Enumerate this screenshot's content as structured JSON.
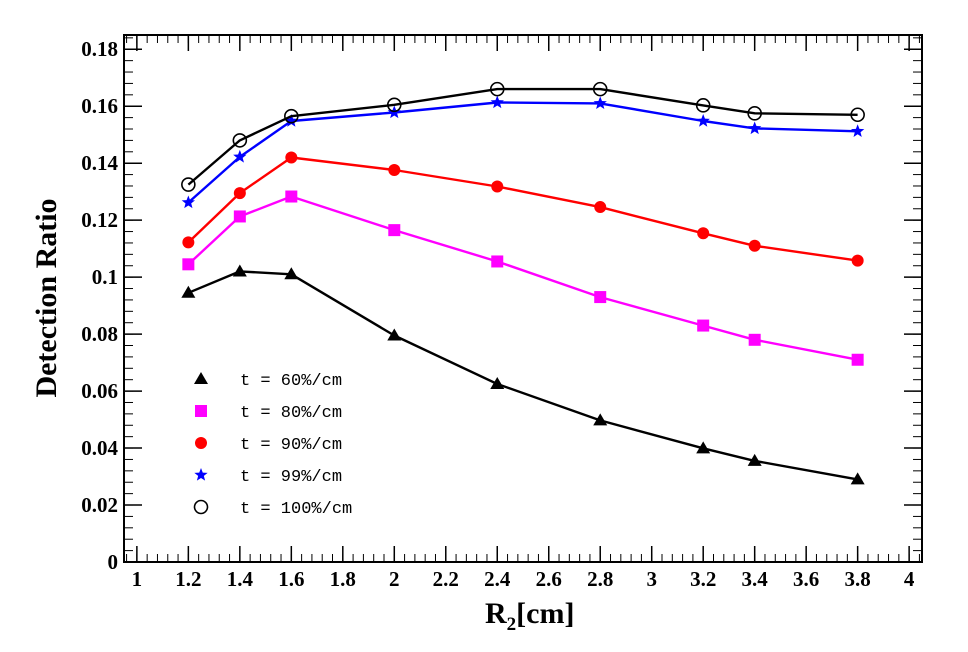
{
  "chart_data": {
    "type": "line",
    "title": "",
    "xlabel": "R",
    "xlabel_sub": "2",
    "xlabel_unit": "[cm]",
    "ylabel": "Detection Ratio",
    "xlim": [
      0.95,
      4.05
    ],
    "ylim": [
      0,
      0.185
    ],
    "xticks": [
      1,
      1.2,
      1.4,
      1.6,
      1.8,
      2,
      2.2,
      2.4,
      2.6,
      2.8,
      3,
      3.2,
      3.4,
      3.6,
      3.8,
      4
    ],
    "xtick_labels": [
      "1",
      "1.2",
      "1.4",
      "1.6",
      "1.8",
      "2",
      "2.2",
      "2.4",
      "2.6",
      "2.8",
      "3",
      "3.2",
      "3.4",
      "3.6",
      "3.8",
      "4"
    ],
    "yticks": [
      0,
      0.02,
      0.04,
      0.06,
      0.08,
      0.1,
      0.12,
      0.14,
      0.16,
      0.18
    ],
    "ytick_labels": [
      "0",
      "0.02",
      "0.04",
      "0.06",
      "0.08",
      "0.1",
      "0.12",
      "0.14",
      "0.16",
      "0.18"
    ],
    "grid": false,
    "legend_position": "bottom-left",
    "x": [
      1.2,
      1.4,
      1.6,
      2.0,
      2.4,
      2.8,
      3.2,
      3.4,
      3.8
    ],
    "series": [
      {
        "name": "t = 60%/cm",
        "marker": "triangle",
        "color": "#000000",
        "values": [
          0.0945,
          0.102,
          0.101,
          0.0795,
          0.0625,
          0.0497,
          0.0399,
          0.0355,
          0.029
        ]
      },
      {
        "name": "t = 80%/cm",
        "marker": "square",
        "color": "#ff00ff",
        "values": [
          0.1045,
          0.1213,
          0.1283,
          0.1165,
          0.1055,
          0.093,
          0.083,
          0.078,
          0.071
        ]
      },
      {
        "name": "t = 90%/cm",
        "marker": "circle",
        "color": "#ff0000",
        "values": [
          0.1122,
          0.1295,
          0.142,
          0.1376,
          0.1318,
          0.1246,
          0.1154,
          0.111,
          0.1058
        ]
      },
      {
        "name": "t = 99%/cm",
        "marker": "star",
        "color": "#0000ff",
        "values": [
          0.1262,
          0.1422,
          0.1548,
          0.1578,
          0.1613,
          0.161,
          0.1548,
          0.1522,
          0.1512
        ]
      },
      {
        "name": "t = 100%/cm",
        "marker": "open-circle",
        "color": "#000000",
        "values": [
          0.1325,
          0.148,
          0.1565,
          0.1605,
          0.166,
          0.166,
          0.1603,
          0.1575,
          0.157
        ]
      }
    ]
  }
}
